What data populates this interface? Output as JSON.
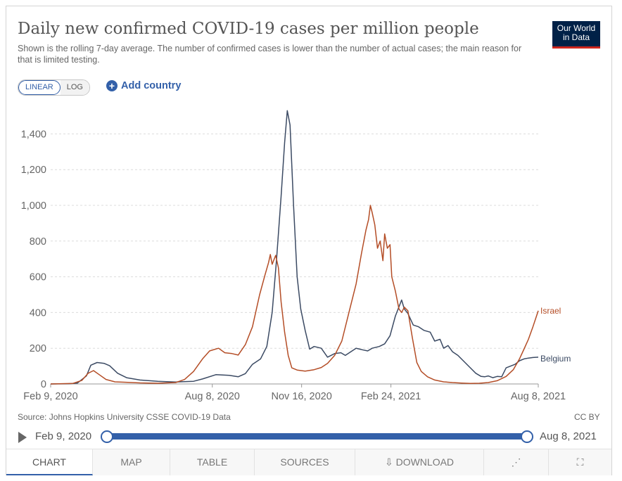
{
  "header": {
    "title": "Daily new confirmed COVID-19 cases per million people",
    "subtitle": "Shown is the rolling 7-day average. The number of confirmed cases is lower than the number of actual cases; the main reason for that is limited testing.",
    "logo_line1": "Our World",
    "logo_line2": "in Data"
  },
  "controls": {
    "linear_label": "LINEAR",
    "log_label": "LOG",
    "add_country_label": "Add country",
    "plus_glyph": "+"
  },
  "footer": {
    "source": "Source: Johns Hopkins University CSSE COVID-19 Data",
    "license": "CC BY"
  },
  "timeline": {
    "start_label": "Feb 9, 2020",
    "end_label": "Aug 8, 2021"
  },
  "tabs": {
    "chart": "CHART",
    "map": "MAP",
    "table": "TABLE",
    "sources": "SOURCES",
    "download": "DOWNLOAD",
    "download_icon": "⇩",
    "share_icon": "⋰",
    "fullscreen_icon": "⛶"
  },
  "colors": {
    "belgium": "#3b4a63",
    "israel": "#b44d26",
    "accent": "#3360a9"
  },
  "chart_data": {
    "type": "line",
    "title": "Daily new confirmed COVID-19 cases per million people",
    "xlabel": "",
    "ylabel": "",
    "x_ticks": [
      {
        "day": 0,
        "label": "Feb 9, 2020"
      },
      {
        "day": 181,
        "label": "Aug 8, 2020"
      },
      {
        "day": 281,
        "label": "Nov 16, 2020"
      },
      {
        "day": 381,
        "label": "Feb 24, 2021"
      },
      {
        "day": 546,
        "label": "Aug 8, 2021"
      }
    ],
    "xlim": [
      0,
      546
    ],
    "y_ticks": [
      {
        "value": 0,
        "label": "0"
      },
      {
        "value": 200,
        "label": "200"
      },
      {
        "value": 400,
        "label": "400"
      },
      {
        "value": 600,
        "label": "600"
      },
      {
        "value": 800,
        "label": "800"
      },
      {
        "value": 1000,
        "label": "1,000"
      },
      {
        "value": 1200,
        "label": "1,200"
      },
      {
        "value": 1400,
        "label": "1,400"
      }
    ],
    "ylim": [
      0,
      1500
    ],
    "grid": true,
    "series": [
      {
        "name": "Belgium",
        "points": [
          [
            0,
            0
          ],
          [
            20,
            1
          ],
          [
            30,
            5
          ],
          [
            40,
            45
          ],
          [
            45,
            105
          ],
          [
            52,
            120
          ],
          [
            60,
            115
          ],
          [
            66,
            102
          ],
          [
            75,
            60
          ],
          [
            85,
            35
          ],
          [
            100,
            22
          ],
          [
            120,
            15
          ],
          [
            140,
            11
          ],
          [
            160,
            15
          ],
          [
            170,
            28
          ],
          [
            185,
            52
          ],
          [
            200,
            48
          ],
          [
            210,
            40
          ],
          [
            218,
            58
          ],
          [
            226,
            110
          ],
          [
            235,
            140
          ],
          [
            242,
            210
          ],
          [
            248,
            400
          ],
          [
            253,
            700
          ],
          [
            258,
            1050
          ],
          [
            262,
            1350
          ],
          [
            265,
            1530
          ],
          [
            268,
            1450
          ],
          [
            272,
            1000
          ],
          [
            276,
            600
          ],
          [
            280,
            420
          ],
          [
            285,
            300
          ],
          [
            290,
            195
          ],
          [
            295,
            210
          ],
          [
            303,
            200
          ],
          [
            310,
            150
          ],
          [
            318,
            170
          ],
          [
            325,
            175
          ],
          [
            330,
            160
          ],
          [
            336,
            180
          ],
          [
            342,
            200
          ],
          [
            350,
            190
          ],
          [
            355,
            185
          ],
          [
            360,
            200
          ],
          [
            368,
            210
          ],
          [
            374,
            225
          ],
          [
            380,
            270
          ],
          [
            386,
            380
          ],
          [
            393,
            470
          ],
          [
            396,
            420
          ],
          [
            400,
            395
          ],
          [
            406,
            330
          ],
          [
            412,
            320
          ],
          [
            418,
            300
          ],
          [
            425,
            290
          ],
          [
            430,
            240
          ],
          [
            436,
            250
          ],
          [
            440,
            200
          ],
          [
            445,
            215
          ],
          [
            450,
            180
          ],
          [
            456,
            160
          ],
          [
            462,
            130
          ],
          [
            470,
            90
          ],
          [
            476,
            60
          ],
          [
            482,
            42
          ],
          [
            486,
            40
          ],
          [
            490,
            45
          ],
          [
            495,
            35
          ],
          [
            500,
            42
          ],
          [
            505,
            40
          ],
          [
            510,
            90
          ],
          [
            515,
            100
          ],
          [
            520,
            110
          ],
          [
            525,
            130
          ],
          [
            530,
            140
          ],
          [
            535,
            145
          ],
          [
            540,
            148
          ],
          [
            546,
            150
          ]
        ]
      },
      {
        "name": "Israel",
        "points": [
          [
            0,
            0
          ],
          [
            25,
            3
          ],
          [
            35,
            20
          ],
          [
            42,
            60
          ],
          [
            48,
            75
          ],
          [
            55,
            50
          ],
          [
            62,
            25
          ],
          [
            72,
            12
          ],
          [
            82,
            10
          ],
          [
            100,
            6
          ],
          [
            120,
            4
          ],
          [
            140,
            8
          ],
          [
            150,
            25
          ],
          [
            160,
            70
          ],
          [
            170,
            140
          ],
          [
            178,
            185
          ],
          [
            188,
            200
          ],
          [
            195,
            175
          ],
          [
            203,
            170
          ],
          [
            210,
            162
          ],
          [
            218,
            220
          ],
          [
            226,
            320
          ],
          [
            234,
            500
          ],
          [
            240,
            610
          ],
          [
            244,
            680
          ],
          [
            246,
            725
          ],
          [
            248,
            670
          ],
          [
            252,
            720
          ],
          [
            255,
            650
          ],
          [
            258,
            460
          ],
          [
            262,
            290
          ],
          [
            266,
            160
          ],
          [
            270,
            90
          ],
          [
            276,
            78
          ],
          [
            285,
            72
          ],
          [
            295,
            80
          ],
          [
            303,
            92
          ],
          [
            310,
            115
          ],
          [
            318,
            160
          ],
          [
            326,
            240
          ],
          [
            334,
            400
          ],
          [
            342,
            560
          ],
          [
            348,
            730
          ],
          [
            353,
            860
          ],
          [
            356,
            920
          ],
          [
            358,
            1000
          ],
          [
            360,
            960
          ],
          [
            363,
            890
          ],
          [
            366,
            760
          ],
          [
            369,
            800
          ],
          [
            372,
            690
          ],
          [
            374,
            840
          ],
          [
            377,
            760
          ],
          [
            380,
            780
          ],
          [
            382,
            600
          ],
          [
            386,
            520
          ],
          [
            390,
            420
          ],
          [
            393,
            400
          ],
          [
            396,
            430
          ],
          [
            400,
            410
          ],
          [
            405,
            260
          ],
          [
            410,
            120
          ],
          [
            415,
            70
          ],
          [
            422,
            40
          ],
          [
            430,
            22
          ],
          [
            440,
            12
          ],
          [
            450,
            8
          ],
          [
            460,
            5
          ],
          [
            470,
            3
          ],
          [
            480,
            4
          ],
          [
            490,
            8
          ],
          [
            500,
            18
          ],
          [
            510,
            42
          ],
          [
            518,
            80
          ],
          [
            525,
            140
          ],
          [
            530,
            195
          ],
          [
            535,
            250
          ],
          [
            540,
            320
          ],
          [
            546,
            410
          ]
        ]
      }
    ]
  }
}
